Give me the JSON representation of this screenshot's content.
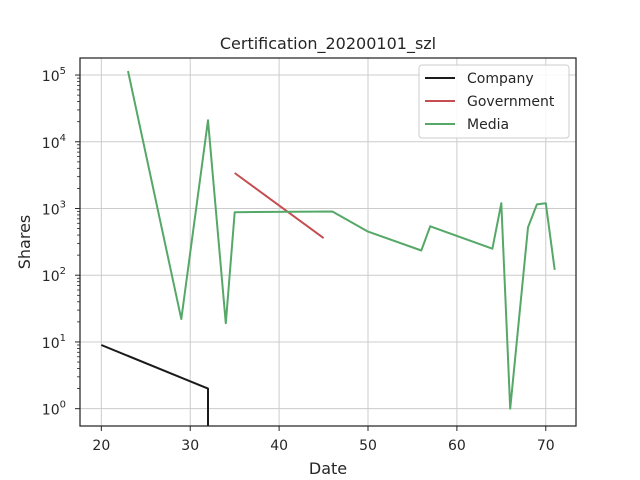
{
  "chart_data": {
    "type": "line",
    "title": "Certification_20200101_szl",
    "xlabel": "Date",
    "ylabel": "Shares",
    "xlim": [
      17.6,
      73.4
    ],
    "ylim": [
      0.55,
      180000
    ],
    "yscale": "log",
    "grid": true,
    "legend_position": "top-right",
    "x_ticks": [
      20,
      30,
      40,
      50,
      60,
      70
    ],
    "x_tick_labels": [
      "20",
      "30",
      "40",
      "50",
      "60",
      "70"
    ],
    "y_ticks": [
      1,
      10,
      100,
      1000,
      10000,
      100000
    ],
    "y_tick_labels": [
      {
        "base": "10",
        "exp": "0"
      },
      {
        "base": "10",
        "exp": "1"
      },
      {
        "base": "10",
        "exp": "2"
      },
      {
        "base": "10",
        "exp": "3"
      },
      {
        "base": "10",
        "exp": "4"
      },
      {
        "base": "10",
        "exp": "5"
      }
    ],
    "series": [
      {
        "name": "Company",
        "color": "#1a1a1a",
        "points": [
          [
            20,
            9
          ],
          [
            32,
            2
          ],
          [
            32,
            0.55
          ]
        ]
      },
      {
        "name": "Government",
        "color": "#c44e52",
        "points": [
          [
            35,
            3400
          ],
          [
            45,
            360
          ]
        ]
      },
      {
        "name": "Media",
        "color": "#55a868",
        "points": [
          [
            23,
            115000
          ],
          [
            29,
            22
          ],
          [
            32,
            21000
          ],
          [
            34,
            19
          ],
          [
            35,
            880
          ],
          [
            46,
            900
          ],
          [
            50,
            450
          ],
          [
            56,
            235
          ],
          [
            57,
            540
          ],
          [
            64,
            250
          ],
          [
            65,
            1200
          ],
          [
            66,
            1
          ],
          [
            68,
            520
          ],
          [
            69,
            1150
          ],
          [
            70,
            1200
          ],
          [
            71,
            120
          ]
        ]
      }
    ]
  }
}
